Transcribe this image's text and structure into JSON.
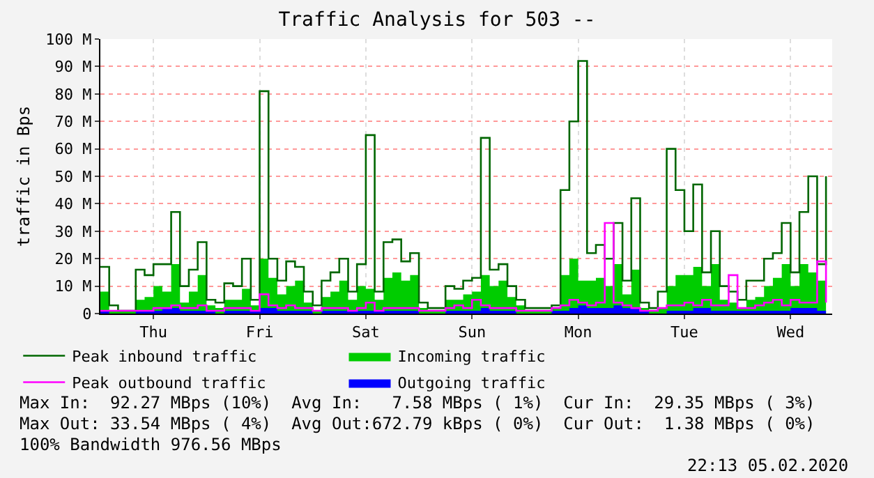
{
  "chart_data": {
    "type": "area",
    "title": "Traffic Analysis for 503 --",
    "ylabel": "traffic in Bps",
    "categories": [
      null,
      null,
      null,
      null,
      null,
      null,
      "Thu",
      null,
      null,
      null,
      null,
      null,
      null,
      null,
      null,
      null,
      null,
      null,
      "Fri",
      null,
      null,
      null,
      null,
      null,
      null,
      null,
      null,
      null,
      null,
      null,
      "Sat",
      null,
      null,
      null,
      null,
      null,
      null,
      null,
      null,
      null,
      null,
      null,
      "Sun",
      null,
      null,
      null,
      null,
      null,
      null,
      null,
      null,
      null,
      null,
      null,
      "Mon",
      null,
      null,
      null,
      null,
      null,
      null,
      null,
      null,
      null,
      null,
      null,
      "Tue",
      null,
      null,
      null,
      null,
      null,
      null,
      null,
      null,
      null,
      null,
      null,
      "Wed",
      null,
      null,
      null,
      null
    ],
    "series": [
      {
        "name": "Peak inbound traffic",
        "type": "step",
        "color": "#006600",
        "values": [
          17,
          3,
          1,
          1,
          16,
          14,
          18,
          18,
          37,
          10,
          16,
          26,
          5,
          4,
          11,
          10,
          20,
          5,
          81,
          20,
          12,
          19,
          17,
          8,
          3,
          12,
          15,
          20,
          8,
          18,
          65,
          8,
          26,
          27,
          19,
          22,
          4,
          2,
          2,
          10,
          9,
          12,
          13,
          64,
          16,
          18,
          10,
          5,
          2,
          2,
          2,
          3,
          45,
          70,
          92,
          22,
          25,
          20,
          33,
          12,
          42,
          4,
          2,
          8,
          60,
          45,
          30,
          47,
          15,
          30,
          10,
          8,
          5,
          12,
          12,
          20,
          22,
          33,
          15,
          37,
          50,
          18,
          50
        ]
      },
      {
        "name": "Incoming traffic",
        "type": "area",
        "color": "#00cc00",
        "values": [
          8,
          1,
          1,
          1,
          5,
          6,
          10,
          8,
          18,
          4,
          8,
          14,
          3,
          2,
          5,
          5,
          9,
          3,
          20,
          13,
          7,
          10,
          12,
          4,
          1,
          6,
          8,
          12,
          5,
          10,
          9,
          5,
          13,
          15,
          12,
          14,
          2,
          1,
          1,
          5,
          5,
          7,
          8,
          14,
          10,
          12,
          6,
          3,
          1,
          1,
          1,
          2,
          14,
          20,
          12,
          12,
          13,
          10,
          18,
          7,
          16,
          2,
          1,
          2,
          10,
          14,
          14,
          17,
          10,
          18,
          5,
          4,
          2,
          5,
          6,
          10,
          13,
          18,
          10,
          18,
          15,
          12,
          29
        ]
      },
      {
        "name": "Peak outbound traffic",
        "type": "step",
        "color": "#ff00ff",
        "values": [
          1,
          1,
          1,
          1,
          1,
          1,
          2,
          2,
          3,
          2,
          2,
          3,
          1,
          1,
          2,
          2,
          2,
          1,
          7,
          3,
          2,
          3,
          2,
          2,
          1,
          2,
          2,
          2,
          1,
          2,
          4,
          1,
          2,
          2,
          2,
          2,
          1,
          1,
          1,
          2,
          3,
          2,
          5,
          3,
          2,
          2,
          2,
          1,
          1,
          1,
          1,
          2,
          3,
          5,
          4,
          3,
          4,
          33,
          4,
          3,
          2,
          1,
          1,
          2,
          3,
          3,
          4,
          3,
          5,
          3,
          3,
          14,
          2,
          2,
          3,
          4,
          5,
          3,
          5,
          4,
          4,
          19,
          4
        ]
      },
      {
        "name": "Outgoing traffic",
        "type": "area",
        "color": "#0000ff",
        "values": [
          1,
          0,
          0,
          0,
          1,
          1,
          1,
          2,
          2,
          1,
          1,
          1,
          1,
          0,
          1,
          1,
          1,
          1,
          2,
          2,
          1,
          1,
          1,
          1,
          0,
          1,
          1,
          1,
          1,
          1,
          1,
          1,
          1,
          1,
          1,
          1,
          0,
          0,
          0,
          1,
          1,
          1,
          1,
          2,
          1,
          1,
          1,
          0,
          0,
          0,
          0,
          1,
          1,
          2,
          3,
          2,
          2,
          2,
          3,
          2,
          2,
          1,
          0,
          0,
          1,
          1,
          1,
          2,
          2,
          1,
          1,
          1,
          1,
          1,
          1,
          1,
          1,
          1,
          2,
          2,
          2,
          1,
          1
        ]
      }
    ],
    "ylim": [
      0,
      100
    ],
    "yticks": [
      0,
      {
        "value": 10,
        "label": "10 M"
      },
      {
        "value": 20,
        "label": "20 M"
      },
      {
        "value": 30,
        "label": "30 M"
      },
      {
        "value": 40,
        "label": "40 M"
      },
      {
        "value": 50,
        "label": "50 M"
      },
      {
        "value": 60,
        "label": "60 M"
      },
      {
        "value": 70,
        "label": "70 M"
      },
      {
        "value": 80,
        "label": "80 M"
      },
      {
        "value": 90,
        "label": "90 M"
      },
      {
        "value": 100,
        "label": "100 M"
      }
    ],
    "grid": true,
    "legend": "bottom",
    "annotations": [
      "Max In:  92.27 MBps (10%)  Avg In:   7.58 MBps ( 1%)  Cur In:  29.35 MBps ( 3%)",
      "Max Out: 33.54 MBps ( 4%)  Avg Out:672.79 kBps ( 0%)  Cur Out:  1.38 MBps ( 0%)",
      "100% Bandwidth 976.56 MBps",
      "22:13 05.02.2020"
    ]
  }
}
